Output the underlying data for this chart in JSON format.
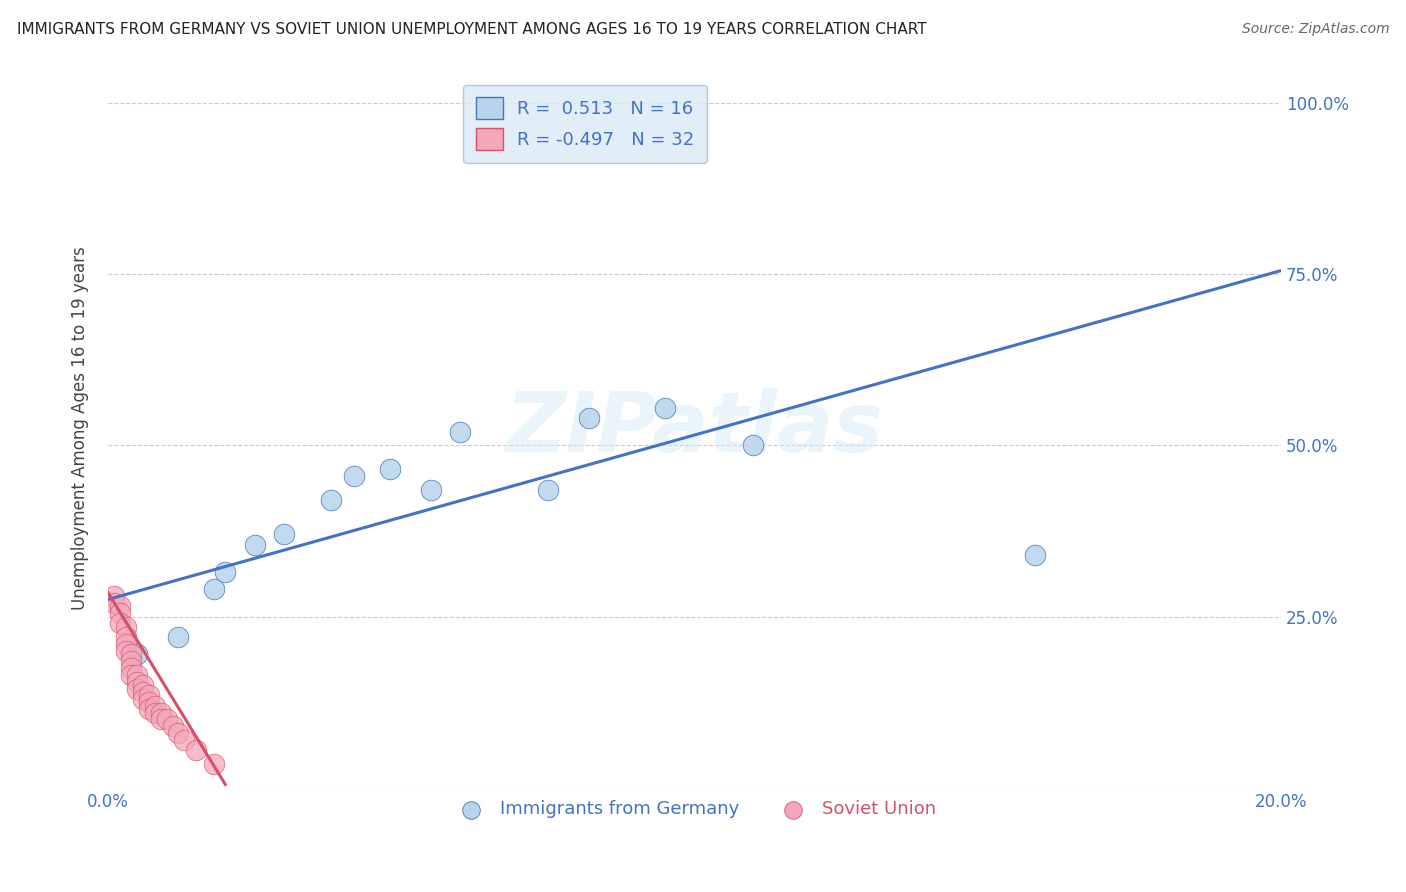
{
  "title": "IMMIGRANTS FROM GERMANY VS SOVIET UNION UNEMPLOYMENT AMONG AGES 16 TO 19 YEARS CORRELATION CHART",
  "source": "Source: ZipAtlas.com",
  "ylabel": "Unemployment Among Ages 16 to 19 years",
  "xlim": [
    0.0,
    0.2
  ],
  "ylim": [
    0.0,
    1.05
  ],
  "xtick_positions": [
    0.0,
    0.04,
    0.08,
    0.12,
    0.16,
    0.2
  ],
  "xticklabels": [
    "0.0%",
    "",
    "",
    "",
    "",
    "20.0%"
  ],
  "ytick_positions": [
    0.0,
    0.25,
    0.5,
    0.75,
    1.0
  ],
  "yticklabels": [
    "",
    "25.0%",
    "50.0%",
    "75.0%",
    "100.0%"
  ],
  "germany_r": 0.513,
  "germany_n": 16,
  "soviet_r": -0.497,
  "soviet_n": 32,
  "germany_color": "#b8d4ea",
  "germany_line_color": "#4472c4",
  "soviet_color": "#f4a7b9",
  "soviet_line_color": "#d4506a",
  "watermark": "ZIPatlas",
  "germany_x": [
    0.005,
    0.012,
    0.018,
    0.02,
    0.025,
    0.03,
    0.038,
    0.042,
    0.048,
    0.055,
    0.06,
    0.075,
    0.082,
    0.095,
    0.11,
    0.158
  ],
  "germany_y": [
    0.195,
    0.22,
    0.29,
    0.315,
    0.355,
    0.37,
    0.42,
    0.455,
    0.465,
    0.435,
    0.52,
    0.435,
    0.54,
    0.555,
    0.5,
    0.34
  ],
  "germany_line_x0": 0.0,
  "germany_line_y0": 0.275,
  "germany_line_x1": 0.2,
  "germany_line_y1": 0.755,
  "soviet_x": [
    0.001,
    0.001,
    0.002,
    0.002,
    0.002,
    0.003,
    0.003,
    0.003,
    0.003,
    0.004,
    0.004,
    0.004,
    0.004,
    0.005,
    0.005,
    0.005,
    0.006,
    0.006,
    0.006,
    0.007,
    0.007,
    0.007,
    0.008,
    0.008,
    0.009,
    0.009,
    0.01,
    0.011,
    0.012,
    0.013,
    0.015,
    0.018
  ],
  "soviet_y": [
    0.28,
    0.27,
    0.265,
    0.255,
    0.24,
    0.235,
    0.22,
    0.21,
    0.2,
    0.195,
    0.185,
    0.175,
    0.165,
    0.165,
    0.155,
    0.145,
    0.15,
    0.14,
    0.13,
    0.135,
    0.125,
    0.115,
    0.12,
    0.11,
    0.11,
    0.1,
    0.1,
    0.09,
    0.08,
    0.07,
    0.055,
    0.035
  ],
  "soviet_line_x0": 0.0,
  "soviet_line_y0": 0.285,
  "soviet_line_x1": 0.02,
  "soviet_line_y1": 0.005,
  "legend_box_color": "#daeaf7",
  "legend_box_edge": "#a0c0e0"
}
